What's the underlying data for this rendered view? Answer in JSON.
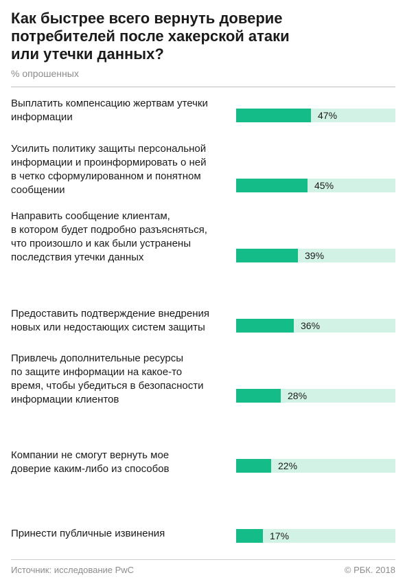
{
  "chart": {
    "title": "Как быстрее всего вернуть  доверие\nпотребителей после хакерской атаки\nили утечки данных?",
    "subtitle": "% опрошенных"
  },
  "footer": {
    "source": "Источник: исследование PwC",
    "copyright": "© РБК. 2018"
  },
  "colors": {
    "bar_fill": "#14bd88",
    "bar_track": "#d2f2e6"
  },
  "chart_data": {
    "type": "bar",
    "orientation": "horizontal",
    "title": "Как быстрее всего вернуть  доверие потребителей после хакерской атаки или утечки данных?",
    "subtitle": "% опрошенных",
    "categories": [
      "Выплатить компенсацию жертвам утечки\nинформации",
      "Усилить политику защиты персональной\nинформации и проинформировать о ней\nв четко сформулированном и понятном\nсообщении",
      "Направить сообщение клиентам,\nв котором будет подробно разъясняться,\nчто произошло и как были устранены\nпоследствия утечки данных",
      "Предоставить подтверждение внедрения\nновых или недостающих систем защиты",
      "Привлечь дополнительные ресурсы\nпо защите информации на какое-то\nвремя, чтобы убедиться в безопасности\nинформации клиентов",
      "Компании не смогут вернуть мое\nдоверие каким-либо из способов",
      "Принести публичные извинения"
    ],
    "values": [
      47,
      45,
      39,
      36,
      28,
      22,
      17
    ],
    "value_labels": [
      "47%",
      "45%",
      "39%",
      "36%",
      "28%",
      "22%",
      "17%"
    ],
    "xlim": [
      0,
      100
    ],
    "grid": false,
    "legend": "none"
  }
}
